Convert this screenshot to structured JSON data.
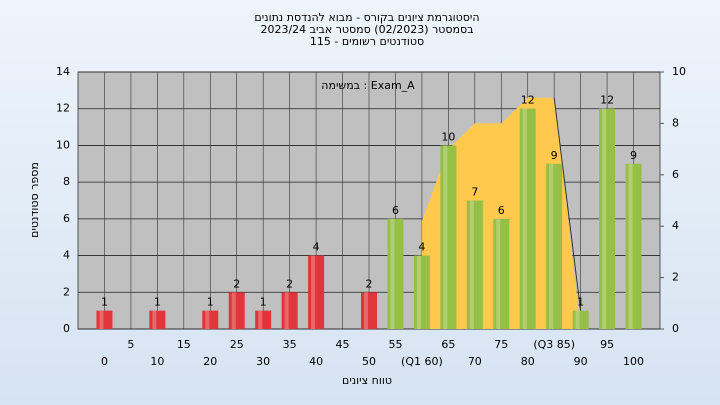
{
  "chart_data": {
    "type": "bar",
    "title": "היסטוגרמת ציונים בקורס - מבוא להנדסת נתונים",
    "subtitle": "בסמסטר  (02/2023)  סמסטר אביב 2023/24",
    "note": "סטודנטים רשומים - 115",
    "annotation": "במשימה : Exam_A",
    "x_label": "טווח ציונים",
    "y_label": "מספר סטודנטים",
    "x": [
      0,
      5,
      10,
      15,
      20,
      25,
      30,
      35,
      40,
      45,
      50,
      55,
      60,
      65,
      70,
      75,
      80,
      85,
      90,
      95,
      100
    ],
    "values": [
      1,
      0,
      1,
      0,
      1,
      2,
      1,
      2,
      4,
      0,
      2,
      6,
      4,
      10,
      7,
      6,
      12,
      9,
      1,
      12,
      9
    ],
    "colors": [
      "#e0353a",
      "#e0353a",
      "#e0353a",
      "#e0353a",
      "#e0353a",
      "#e0353a",
      "#e0353a",
      "#e0353a",
      "#e0353a",
      "#e0353a",
      "#e0353a",
      "#96bf45",
      "#96bf45",
      "#96bf45",
      "#96bf45",
      "#96bf45",
      "#96bf45",
      "#96bf45",
      "#96bf45",
      "#96bf45",
      "#96bf45"
    ],
    "area": {
      "x": [
        60,
        65,
        70,
        75,
        80,
        85,
        90
      ],
      "values": [
        4.2,
        7,
        8,
        8,
        9,
        9,
        0
      ],
      "color": "#ffc94d",
      "axis": "y2"
    },
    "xlim": [
      -5,
      105
    ],
    "xticks": [
      0,
      5,
      10,
      15,
      20,
      25,
      30,
      35,
      40,
      45,
      50,
      55,
      {
        "value": 60,
        "label": "(Q1 60)"
      },
      65,
      70,
      75,
      80,
      {
        "value": 85,
        "label": "(Q3 85)"
      },
      90,
      95,
      100
    ],
    "ylim": [
      0,
      14
    ],
    "yticks": [
      0,
      2,
      4,
      6,
      8,
      10,
      12,
      14
    ],
    "y2lim": [
      0,
      10
    ],
    "y2ticks": [
      0,
      2,
      4,
      6,
      8,
      10
    ],
    "grid": true
  }
}
